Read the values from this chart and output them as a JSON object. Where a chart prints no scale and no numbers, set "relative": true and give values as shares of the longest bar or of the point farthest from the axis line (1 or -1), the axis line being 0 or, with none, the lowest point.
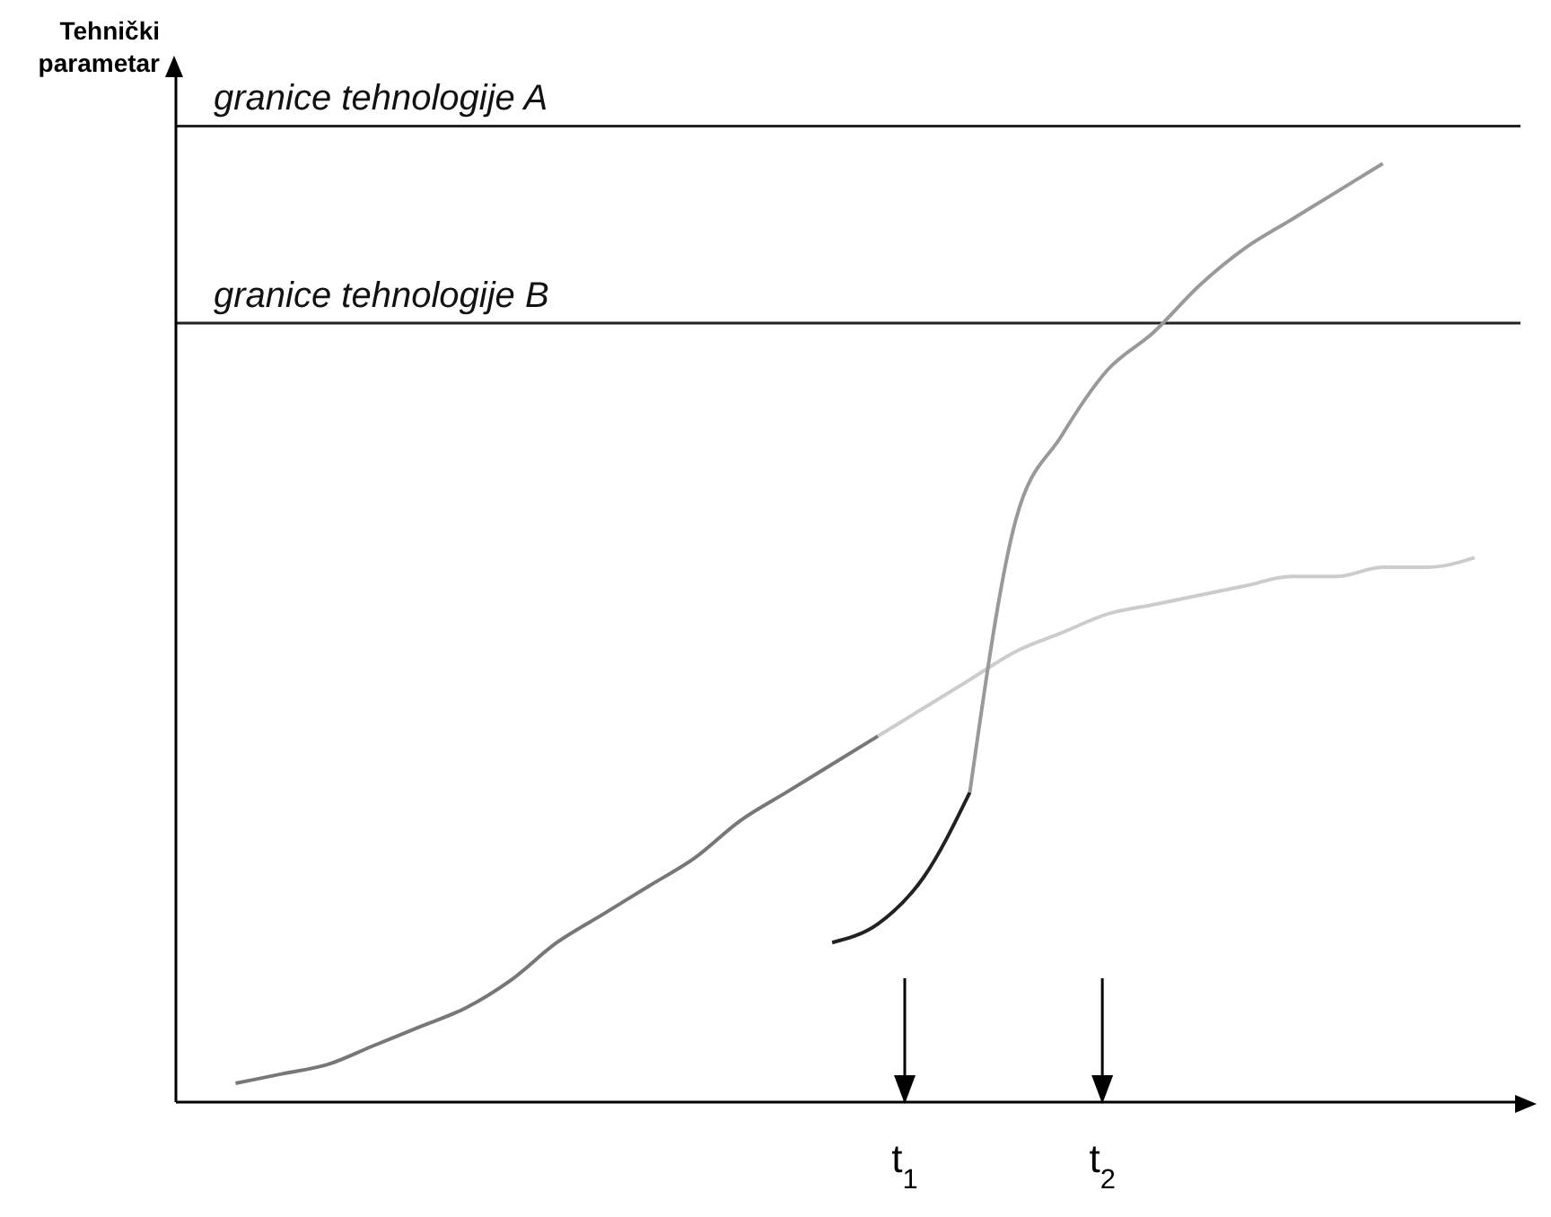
{
  "chart_data": {
    "type": "line",
    "relative": true,
    "ylabel": "Tehnički parametar",
    "categories": [
      null,
      null,
      null,
      null,
      null,
      null,
      null,
      null,
      null,
      null,
      null,
      null,
      null,
      null,
      null,
      null,
      null,
      null,
      null,
      null,
      null,
      null,
      null,
      null,
      null,
      null,
      null,
      null
    ],
    "series": [
      {
        "color": "#777777",
        "values": [
          0.02,
          0.03,
          0.04,
          0.06,
          0.08,
          0.1,
          0.13,
          0.17,
          0.2,
          0.23,
          0.26,
          0.3,
          0.33,
          0.36,
          0.39,
          null,
          null,
          null,
          null,
          null,
          null,
          null,
          null,
          null,
          null,
          null,
          null,
          null
        ]
      },
      {
        "color": "#cccccc",
        "values": [
          null,
          null,
          null,
          null,
          null,
          null,
          null,
          null,
          null,
          null,
          null,
          null,
          null,
          null,
          0.39,
          0.42,
          0.45,
          0.48,
          0.5,
          0.52,
          0.53,
          0.54,
          0.55,
          0.56,
          0.56,
          0.57,
          0.57,
          0.58
        ]
      },
      {
        "color": "#222222",
        "values": [
          null,
          null,
          null,
          null,
          null,
          null,
          null,
          null,
          null,
          null,
          null,
          null,
          null,
          0.17,
          0.19,
          0.24,
          0.33,
          null,
          null,
          null,
          null,
          null,
          null,
          null,
          null,
          null,
          null,
          null
        ]
      },
      {
        "color": "#999999",
        "values": [
          null,
          null,
          null,
          null,
          null,
          null,
          null,
          null,
          null,
          null,
          null,
          null,
          null,
          null,
          null,
          null,
          0.33,
          0.62,
          0.71,
          0.78,
          0.82,
          0.87,
          0.91,
          0.94,
          0.97,
          1.0,
          null,
          null
        ]
      }
    ],
    "ref_lines": [
      {
        "axis": "y",
        "value": 1.04,
        "label": "granice tehnologije A",
        "color": "#222222"
      },
      {
        "axis": "y",
        "value": 0.83,
        "label": "granice tehnologije B",
        "color": "#222222"
      }
    ],
    "annotations": [
      "t$_{1}$",
      "t$_{2}$"
    ]
  }
}
